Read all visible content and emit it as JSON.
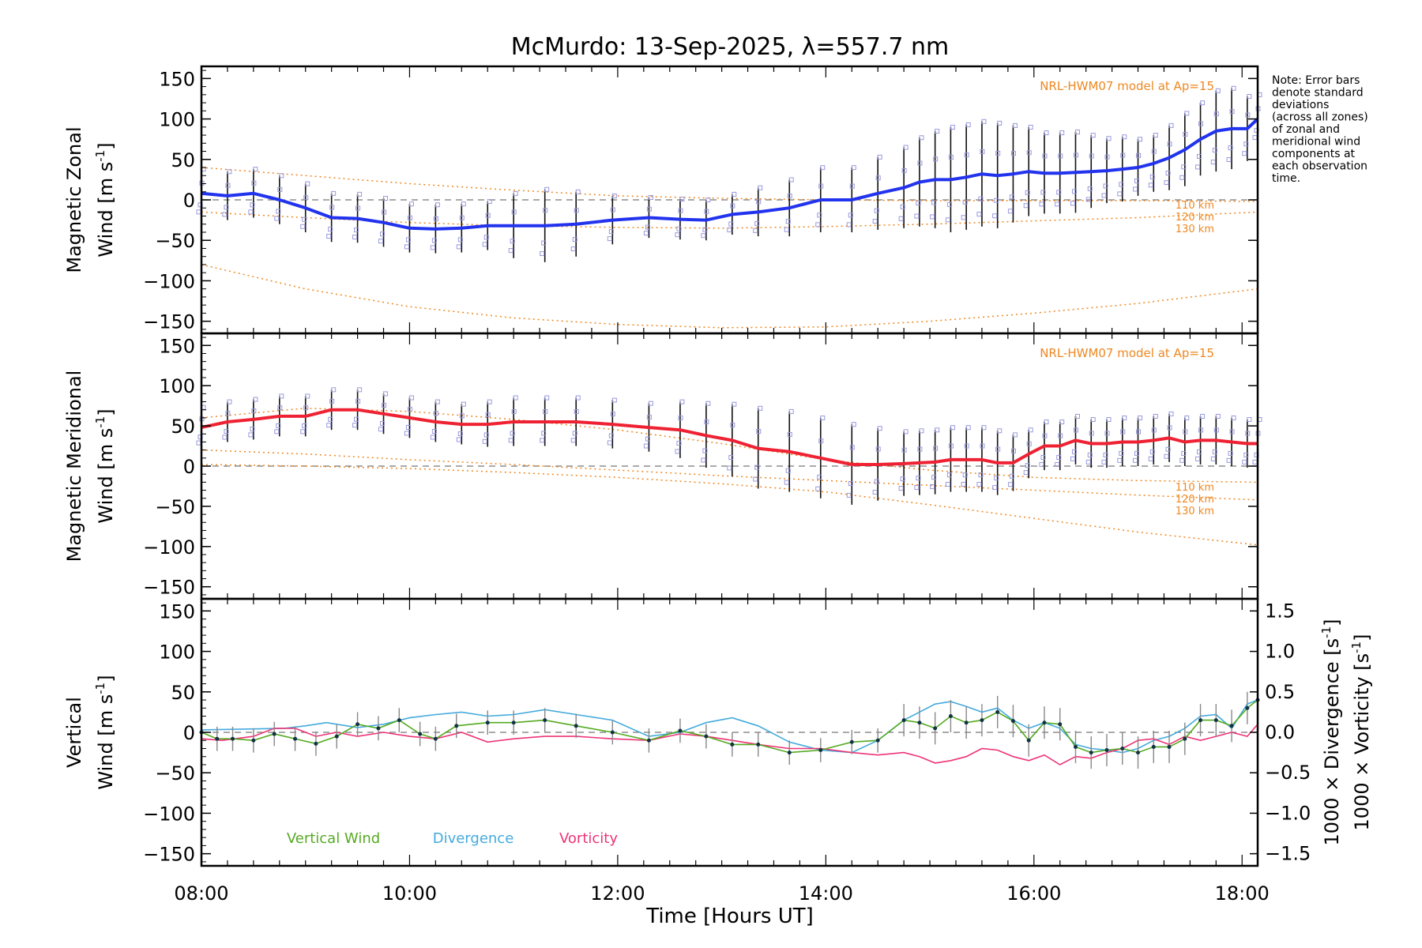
{
  "figure": {
    "title": "McMurdo: 13-Sep-2025, λ=557.7 nm",
    "xlabel": "Time [Hours UT]",
    "note_lines": [
      "Note: Error bars",
      "denote standard",
      "deviations",
      "(across all zones)",
      "of zonal and",
      "meridional wind",
      "components at",
      "each observation",
      "time."
    ]
  },
  "colors": {
    "zonal": "#2233ee",
    "meridional": "#ee2233",
    "model": "#ee8822",
    "zone_box": "#9999dd",
    "vertical": "#55aa22",
    "divergence": "#44aadd",
    "vorticity": "#ee3377",
    "errbar": "#111111",
    "zero": "#777777"
  },
  "chart_data": [
    {
      "type": "line",
      "id": "zonal",
      "ylabel_line1": "Magnetic Zonal",
      "ylabel_line2": "Wind [m s",
      "ylabel_sup": "-1",
      "ylabel_close": "]",
      "xlim": [
        8.0,
        18.15
      ],
      "ylim": [
        -165,
        165
      ],
      "xticks": [
        "08:00",
        "10:00",
        "12:00",
        "14:00",
        "16:00",
        "18:00"
      ],
      "yticks": [
        "150",
        "100",
        "50",
        "0",
        "−50",
        "−100",
        "−150"
      ],
      "model_label": "NRL-HWM07 model at Ap=15",
      "model_alt_labels": [
        "110 km",
        "120 km",
        "130 km"
      ],
      "model_curves": [
        {
          "x": [
            8.0,
            9.0,
            10.0,
            11.0,
            12.0,
            13.0,
            14.0,
            15.0,
            16.0,
            17.0,
            18.15
          ],
          "y": [
            40,
            30,
            20,
            12,
            5,
            2,
            0,
            -1,
            -1,
            -1,
            -2
          ]
        },
        {
          "x": [
            8.0,
            9.0,
            10.0,
            11.0,
            12.0,
            13.0,
            14.0,
            15.0,
            16.0,
            17.0,
            18.15
          ],
          "y": [
            -15,
            -22,
            -28,
            -32,
            -34,
            -35,
            -33,
            -30,
            -26,
            -22,
            -15
          ]
        },
        {
          "x": [
            8.0,
            9.0,
            10.0,
            11.0,
            12.0,
            13.0,
            14.0,
            15.0,
            16.0,
            17.0,
            18.15
          ],
          "y": [
            -80,
            -110,
            -132,
            -146,
            -154,
            -158,
            -157,
            -150,
            -140,
            -128,
            -110
          ]
        }
      ],
      "x": [
        8.0,
        8.25,
        8.5,
        8.75,
        9.0,
        9.25,
        9.5,
        9.75,
        10.0,
        10.25,
        10.5,
        10.75,
        11.0,
        11.3,
        11.6,
        11.95,
        12.3,
        12.6,
        12.85,
        13.1,
        13.35,
        13.65,
        13.95,
        14.25,
        14.5,
        14.75,
        14.9,
        15.05,
        15.2,
        15.35,
        15.5,
        15.65,
        15.8,
        15.95,
        16.1,
        16.25,
        16.4,
        16.55,
        16.7,
        16.85,
        17.0,
        17.15,
        17.3,
        17.45,
        17.6,
        17.75,
        17.9,
        18.05,
        18.15
      ],
      "values": [
        8,
        5,
        8,
        0,
        -10,
        -22,
        -23,
        -28,
        -35,
        -36,
        -35,
        -32,
        -32,
        -32,
        -30,
        -25,
        -22,
        -24,
        -25,
        -18,
        -15,
        -10,
        0,
        0,
        8,
        15,
        22,
        25,
        25,
        28,
        32,
        30,
        32,
        35,
        33,
        33,
        34,
        35,
        36,
        38,
        40,
        45,
        52,
        62,
        75,
        85,
        88,
        88,
        100
      ],
      "errors": [
        30,
        30,
        30,
        30,
        30,
        30,
        30,
        30,
        30,
        30,
        30,
        30,
        40,
        45,
        40,
        30,
        25,
        25,
        25,
        25,
        30,
        35,
        40,
        40,
        45,
        50,
        55,
        60,
        65,
        65,
        65,
        65,
        60,
        55,
        50,
        50,
        50,
        45,
        40,
        40,
        35,
        35,
        40,
        45,
        45,
        50,
        50,
        40,
        30
      ]
    },
    {
      "type": "line",
      "id": "meridional",
      "ylabel_line1": "Magnetic Meridional",
      "ylabel_line2": "Wind [m s",
      "ylabel_sup": "-1",
      "ylabel_close": "]",
      "xlim": [
        8.0,
        18.15
      ],
      "ylim": [
        -165,
        165
      ],
      "xticks": [
        "08:00",
        "10:00",
        "12:00",
        "14:00",
        "16:00",
        "18:00"
      ],
      "yticks": [
        "150",
        "100",
        "50",
        "0",
        "−50",
        "−100",
        "−150"
      ],
      "model_label": "NRL-HWM07 model at Ap=15",
      "model_alt_labels": [
        "110 km",
        "120 km",
        "130 km"
      ],
      "model_curves": [
        {
          "x": [
            8.0,
            9.0,
            10.0,
            11.0,
            12.0,
            13.0,
            14.0,
            15.0,
            16.0,
            17.0,
            18.15
          ],
          "y": [
            60,
            72,
            68,
            58,
            45,
            28,
            8,
            -5,
            -14,
            -18,
            -20
          ]
        },
        {
          "x": [
            8.0,
            9.0,
            10.0,
            11.0,
            12.0,
            13.0,
            14.0,
            15.0,
            16.0,
            17.0,
            18.15
          ],
          "y": [
            20,
            15,
            8,
            2,
            -5,
            -12,
            -18,
            -24,
            -30,
            -36,
            -42
          ]
        },
        {
          "x": [
            8.0,
            9.0,
            10.0,
            11.0,
            12.0,
            13.0,
            14.0,
            15.0,
            16.0,
            17.0,
            18.15
          ],
          "y": [
            2,
            0,
            -3,
            -8,
            -14,
            -22,
            -32,
            -48,
            -65,
            -82,
            -98
          ]
        }
      ],
      "x": [
        8.0,
        8.25,
        8.5,
        8.75,
        9.0,
        9.25,
        9.5,
        9.75,
        10.0,
        10.25,
        10.5,
        10.75,
        11.0,
        11.3,
        11.6,
        11.95,
        12.3,
        12.6,
        12.85,
        13.1,
        13.35,
        13.65,
        13.95,
        14.25,
        14.5,
        14.75,
        14.9,
        15.05,
        15.2,
        15.35,
        15.5,
        15.65,
        15.8,
        15.95,
        16.1,
        16.25,
        16.4,
        16.55,
        16.7,
        16.85,
        17.0,
        17.15,
        17.3,
        17.45,
        17.6,
        17.75,
        17.9,
        18.05,
        18.15
      ],
      "values": [
        48,
        55,
        58,
        62,
        62,
        70,
        70,
        65,
        60,
        55,
        52,
        52,
        55,
        55,
        55,
        52,
        48,
        45,
        38,
        32,
        22,
        18,
        10,
        2,
        2,
        3,
        4,
        5,
        8,
        8,
        8,
        4,
        4,
        15,
        25,
        25,
        32,
        28,
        28,
        30,
        30,
        32,
        35,
        30,
        32,
        32,
        30,
        28,
        28
      ],
      "errors": [
        25,
        25,
        25,
        25,
        25,
        25,
        25,
        25,
        25,
        25,
        25,
        28,
        30,
        30,
        30,
        30,
        30,
        35,
        40,
        45,
        50,
        50,
        50,
        50,
        45,
        40,
        40,
        40,
        40,
        40,
        40,
        40,
        35,
        30,
        30,
        30,
        30,
        30,
        30,
        30,
        30,
        30,
        30,
        30,
        30,
        30,
        30,
        30,
        30
      ]
    },
    {
      "type": "line",
      "id": "vertical",
      "ylabel_line1": "Vertical",
      "ylabel_line2": "Wind [m s",
      "ylabel_sup": "-1",
      "ylabel_close": "]",
      "right_label_div": "1000 × Divergence [s",
      "right_label_vor": "1000 × Vorticity [s",
      "right_sup": "-1",
      "right_close": "]",
      "xlim": [
        8.0,
        18.15
      ],
      "ylim": [
        -165,
        165
      ],
      "y2lim": [
        -1.65,
        1.65
      ],
      "xticks": [
        "08:00",
        "10:00",
        "12:00",
        "14:00",
        "16:00",
        "18:00"
      ],
      "yticks": [
        "150",
        "100",
        "50",
        "0",
        "−50",
        "−100",
        "−150"
      ],
      "y2ticks": [
        "1.5",
        "1.0",
        "0.5",
        "0.0",
        "−0.5",
        "−1.0",
        "−1.5"
      ],
      "legend": [
        "Vertical Wind",
        "Divergence",
        "Vorticity"
      ],
      "vertical_x": [
        8.0,
        8.15,
        8.3,
        8.5,
        8.7,
        8.9,
        9.1,
        9.3,
        9.5,
        9.7,
        9.9,
        10.1,
        10.25,
        10.45,
        10.75,
        11.0,
        11.3,
        11.6,
        11.95,
        12.3,
        12.6,
        12.85,
        13.1,
        13.35,
        13.65,
        13.95,
        14.25,
        14.5,
        14.75,
        14.9,
        15.05,
        15.2,
        15.35,
        15.5,
        15.65,
        15.8,
        15.95,
        16.1,
        16.25,
        16.4,
        16.55,
        16.7,
        16.85,
        17.0,
        17.15,
        17.3,
        17.45,
        17.6,
        17.75,
        17.9,
        18.05,
        18.15
      ],
      "vertical_values": [
        0,
        -8,
        -8,
        -10,
        -2,
        -8,
        -14,
        -5,
        10,
        5,
        15,
        -2,
        -8,
        8,
        12,
        12,
        15,
        8,
        0,
        -10,
        2,
        -5,
        -15,
        -15,
        -25,
        -22,
        -12,
        -10,
        15,
        12,
        5,
        20,
        12,
        15,
        25,
        14,
        -10,
        12,
        10,
        -18,
        -25,
        -22,
        -20,
        -25,
        -18,
        -18,
        -8,
        15,
        15,
        8,
        30,
        40
      ],
      "vertical_errors": [
        15,
        15,
        15,
        15,
        15,
        15,
        15,
        15,
        15,
        15,
        15,
        15,
        15,
        15,
        15,
        15,
        15,
        15,
        15,
        15,
        15,
        15,
        15,
        15,
        15,
        15,
        15,
        15,
        20,
        20,
        20,
        20,
        20,
        20,
        20,
        20,
        20,
        20,
        20,
        20,
        20,
        20,
        20,
        20,
        20,
        20,
        20,
        20,
        20,
        20,
        20,
        20
      ],
      "divergence_x": [
        8.0,
        8.4,
        8.8,
        9.0,
        9.2,
        9.5,
        9.75,
        10.0,
        10.25,
        10.5,
        10.75,
        11.0,
        11.3,
        11.6,
        11.95,
        12.3,
        12.6,
        12.85,
        13.1,
        13.35,
        13.65,
        13.95,
        14.25,
        14.5,
        14.75,
        14.9,
        15.05,
        15.2,
        15.35,
        15.5,
        15.65,
        15.8,
        15.95,
        16.1,
        16.25,
        16.4,
        16.55,
        16.7,
        16.85,
        17.0,
        17.15,
        17.3,
        17.45,
        17.6,
        17.75,
        17.9,
        18.05,
        18.15
      ],
      "divergence_values": [
        0.03,
        0.04,
        0.05,
        0.08,
        0.12,
        0.06,
        0.1,
        0.18,
        0.22,
        0.25,
        0.2,
        0.22,
        0.28,
        0.22,
        0.15,
        -0.05,
        0.0,
        0.12,
        0.18,
        0.08,
        -0.12,
        -0.22,
        -0.25,
        -0.1,
        0.15,
        0.25,
        0.35,
        0.38,
        0.32,
        0.25,
        0.3,
        0.15,
        0.05,
        0.12,
        0.05,
        -0.15,
        -0.2,
        -0.22,
        -0.25,
        -0.2,
        -0.1,
        -0.05,
        0.05,
        0.2,
        0.22,
        0.05,
        0.35,
        0.4
      ],
      "vorticity_x": [
        8.0,
        8.2,
        8.5,
        8.7,
        8.9,
        9.1,
        9.3,
        9.5,
        9.75,
        10.0,
        10.25,
        10.5,
        10.75,
        11.0,
        11.3,
        11.6,
        11.95,
        12.3,
        12.6,
        12.85,
        13.1,
        13.35,
        13.65,
        13.95,
        14.25,
        14.5,
        14.75,
        14.9,
        15.05,
        15.2,
        15.35,
        15.5,
        15.65,
        15.8,
        15.95,
        16.1,
        16.25,
        16.4,
        16.55,
        16.7,
        16.85,
        17.0,
        17.15,
        17.3,
        17.45,
        17.6,
        17.75,
        17.9,
        18.05,
        18.15
      ],
      "vorticity_values": [
        -0.08,
        -0.1,
        -0.05,
        0.05,
        0.05,
        -0.05,
        0.0,
        -0.05,
        0.0,
        -0.05,
        -0.08,
        0.0,
        -0.12,
        -0.08,
        -0.05,
        -0.05,
        -0.08,
        -0.1,
        -0.02,
        -0.05,
        -0.1,
        -0.15,
        -0.2,
        -0.2,
        -0.25,
        -0.28,
        -0.25,
        -0.3,
        -0.38,
        -0.35,
        -0.3,
        -0.2,
        -0.22,
        -0.3,
        -0.35,
        -0.28,
        -0.4,
        -0.3,
        -0.32,
        -0.25,
        -0.2,
        -0.1,
        -0.08,
        -0.15,
        -0.05,
        -0.1,
        -0.05,
        0.0,
        -0.05,
        0.1
      ]
    }
  ]
}
